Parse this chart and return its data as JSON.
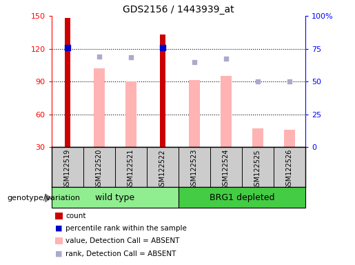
{
  "title": "GDS2156 / 1443939_at",
  "samples": [
    "GSM122519",
    "GSM122520",
    "GSM122521",
    "GSM122522",
    "GSM122523",
    "GSM122524",
    "GSM122525",
    "GSM122526"
  ],
  "ylim_left": [
    30,
    150
  ],
  "ylim_right": [
    0,
    100
  ],
  "yticks_left": [
    30,
    60,
    90,
    120,
    150
  ],
  "yticks_right": [
    0,
    25,
    50,
    75,
    100
  ],
  "ytick_labels_left": [
    "30",
    "60",
    "90",
    "120",
    "150"
  ],
  "ytick_labels_right": [
    "0",
    "25",
    "50",
    "75",
    "100%"
  ],
  "count_values": [
    148,
    null,
    null,
    133,
    null,
    null,
    null,
    null
  ],
  "count_color": "#cc0000",
  "percentile_rank_values": [
    121,
    null,
    null,
    121,
    null,
    null,
    null,
    null
  ],
  "percentile_rank_color": "#0000cc",
  "value_absent_values": [
    null,
    102,
    90,
    null,
    91,
    95,
    47,
    46
  ],
  "value_absent_color": "#ffb3b3",
  "rank_absent_values": [
    null,
    113,
    112,
    null,
    108,
    111,
    90,
    90
  ],
  "rank_absent_color": "#aaaacc",
  "count_bar_width": 0.18,
  "absent_bar_width": 0.35,
  "background_color": "#ffffff",
  "tick_area_color": "#cccccc",
  "wt_color": "#90ee90",
  "brg_color": "#44cc44",
  "genotype_label": "genotype/variation",
  "legend_items": [
    {
      "label": "count",
      "color": "#cc0000",
      "type": "rect"
    },
    {
      "label": "percentile rank within the sample",
      "color": "#0000cc",
      "type": "square"
    },
    {
      "label": "value, Detection Call = ABSENT",
      "color": "#ffb3b3",
      "type": "rect"
    },
    {
      "label": "rank, Detection Call = ABSENT",
      "color": "#aaaacc",
      "type": "square"
    }
  ]
}
